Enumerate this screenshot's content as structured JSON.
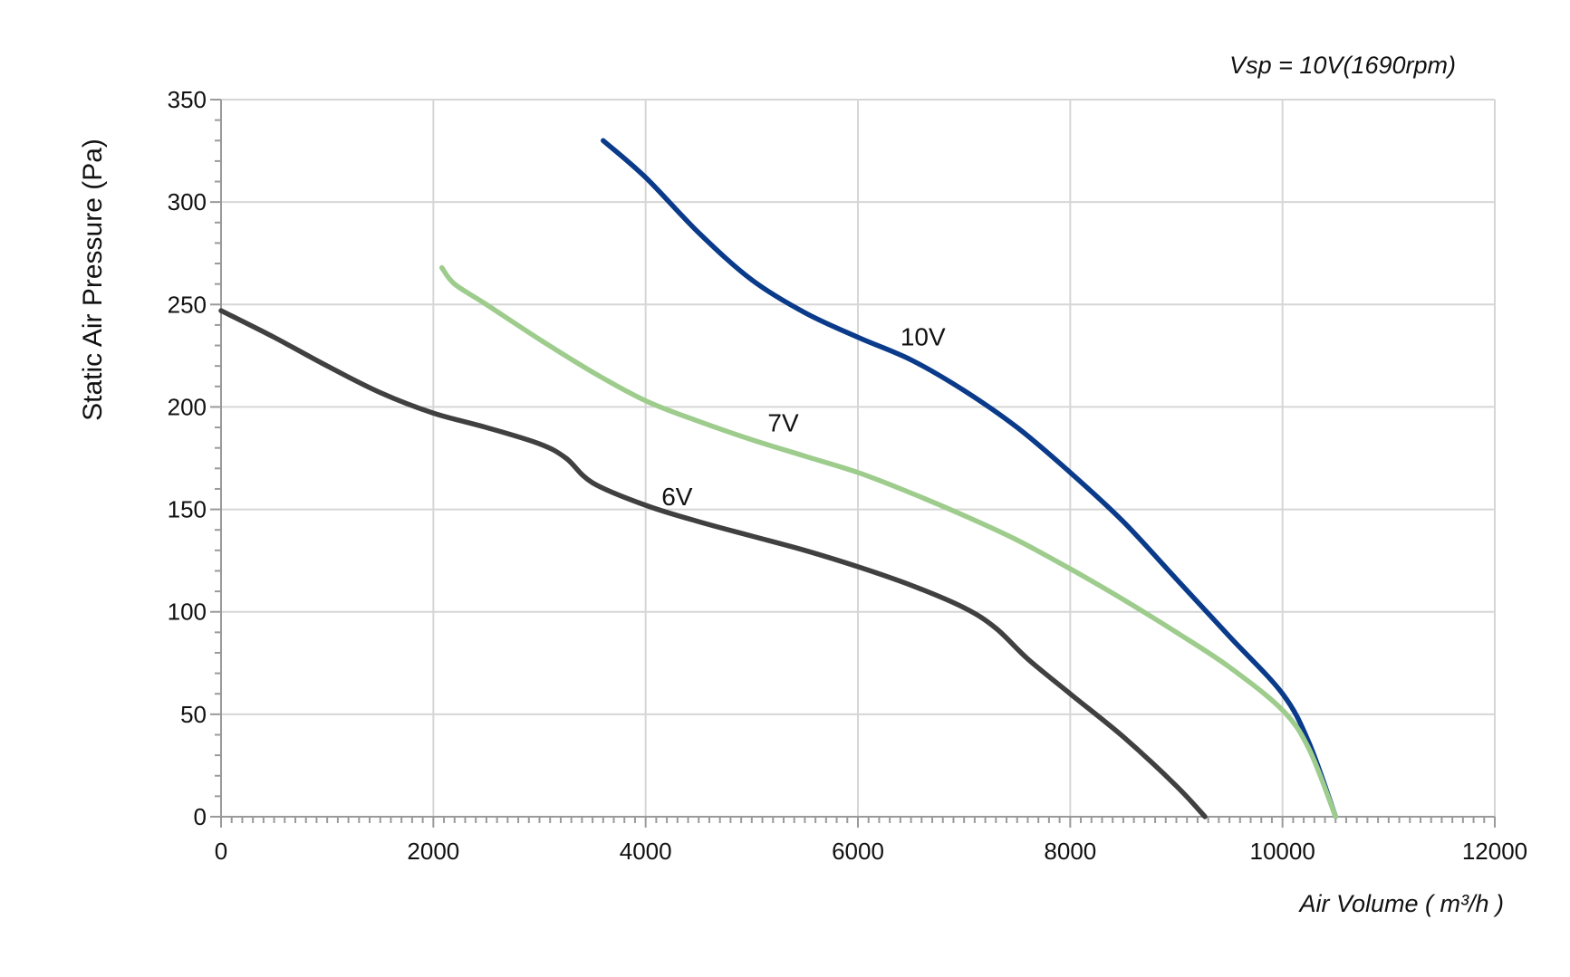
{
  "chart_data": {
    "type": "line",
    "title": "",
    "subtitle": "Vsp = 10V(1690rpm)",
    "xlabel": "Air Volume ( m³/h )",
    "ylabel": "Static Air Pressure  (Pa)",
    "xlim": [
      0,
      12000
    ],
    "ylim": [
      0,
      350
    ],
    "x_ticks": [
      0,
      2000,
      4000,
      6000,
      8000,
      10000,
      12000
    ],
    "y_ticks": [
      0,
      50,
      100,
      150,
      200,
      250,
      300,
      350
    ],
    "x_tick_labels": [
      "0",
      "2000",
      "4000",
      "6000",
      "8000",
      "10000",
      "12000"
    ],
    "y_tick_labels": [
      "0",
      "50",
      "100",
      "150",
      "200",
      "250",
      "300",
      "350"
    ],
    "grid": true,
    "series": [
      {
        "name": "10V",
        "color": "#0a3a8a",
        "label_at": [
          6400,
          230
        ],
        "points": [
          [
            3600,
            330
          ],
          [
            4000,
            312
          ],
          [
            4500,
            285
          ],
          [
            5000,
            262
          ],
          [
            5500,
            246
          ],
          [
            6000,
            234
          ],
          [
            6500,
            223
          ],
          [
            7000,
            208
          ],
          [
            7500,
            190
          ],
          [
            8000,
            168
          ],
          [
            8500,
            144
          ],
          [
            9000,
            116
          ],
          [
            9500,
            88
          ],
          [
            10000,
            60
          ],
          [
            10250,
            36
          ],
          [
            10500,
            0
          ]
        ]
      },
      {
        "name": "7V",
        "color": "#9dcc8c",
        "label_at": [
          5150,
          188
        ],
        "points": [
          [
            2080,
            268
          ],
          [
            2200,
            260
          ],
          [
            2500,
            250
          ],
          [
            3000,
            233
          ],
          [
            3500,
            217
          ],
          [
            4000,
            203
          ],
          [
            4500,
            193
          ],
          [
            5000,
            184
          ],
          [
            5500,
            176
          ],
          [
            6000,
            168
          ],
          [
            6500,
            158
          ],
          [
            7000,
            147
          ],
          [
            7500,
            135
          ],
          [
            8000,
            121
          ],
          [
            8500,
            106
          ],
          [
            9000,
            90
          ],
          [
            9500,
            73
          ],
          [
            10000,
            52
          ],
          [
            10250,
            33
          ],
          [
            10500,
            0
          ]
        ]
      },
      {
        "name": "6V",
        "color": "#404040",
        "label_at": [
          4150,
          152
        ],
        "points": [
          [
            0,
            247
          ],
          [
            500,
            234
          ],
          [
            1000,
            220
          ],
          [
            1500,
            207
          ],
          [
            2000,
            197
          ],
          [
            2500,
            190
          ],
          [
            3000,
            182
          ],
          [
            3250,
            175
          ],
          [
            3500,
            163
          ],
          [
            4000,
            152
          ],
          [
            4500,
            144
          ],
          [
            5000,
            137
          ],
          [
            5500,
            130
          ],
          [
            6000,
            122
          ],
          [
            6500,
            113
          ],
          [
            7000,
            102
          ],
          [
            7300,
            92
          ],
          [
            7600,
            77
          ],
          [
            8000,
            60
          ],
          [
            8500,
            39
          ],
          [
            9000,
            15
          ],
          [
            9270,
            0
          ]
        ]
      }
    ]
  }
}
